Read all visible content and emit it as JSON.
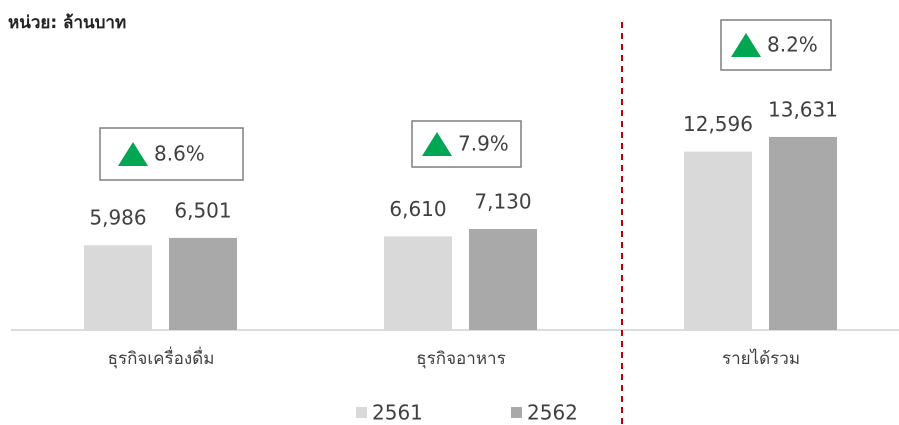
{
  "chart_data": {
    "type": "bar",
    "subtitle": "หน่วย: ล้านบาท",
    "categories": [
      "ธุรกิจเครื่องดื่ม",
      "ธุรกิจอาหาร",
      "รายได้รวม"
    ],
    "series": [
      {
        "name": "2561",
        "color": "#d9d9d9",
        "values": [
          5986,
          6610,
          12596
        ],
        "value_labels": [
          "5,986",
          "6,610",
          "12,596"
        ]
      },
      {
        "name": "2562",
        "color": "#a9a9a9",
        "values": [
          6501,
          7130,
          13631
        ],
        "value_labels": [
          "6,501",
          "7,130",
          "13,631"
        ]
      }
    ],
    "growth_labels": [
      "8.6%",
      "7.9%",
      "8.2%"
    ],
    "growth_color": "#00a651",
    "ylim": [
      0,
      16000
    ],
    "legend": "bottom"
  }
}
